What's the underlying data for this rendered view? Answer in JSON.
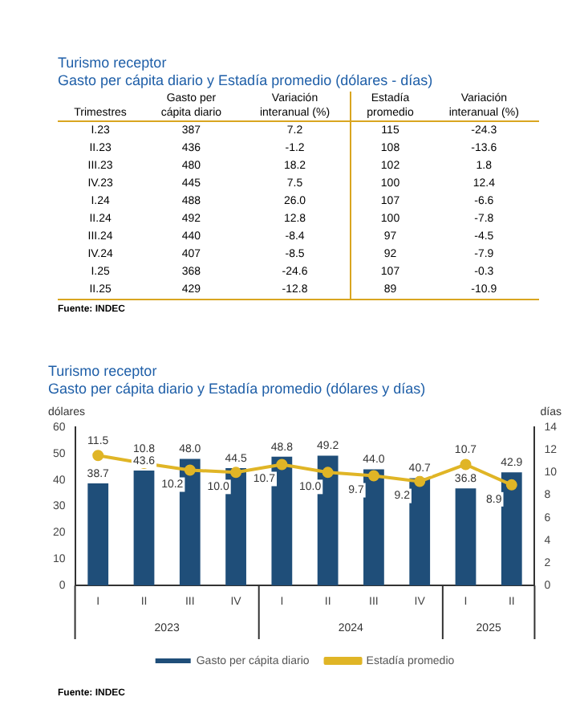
{
  "chart_data": [
    {
      "type": "other",
      "title": "Turismo receptor",
      "subtitle": "Gasto per cápita diario y Estadía promedio (dólares - días)",
      "categories": [
        "Trimestres",
        "Gasto per\ncápita diario",
        "Variación\ninteranual (%)",
        "Estadía\npromedio",
        "Variación\ninteranual (%)"
      ],
      "y_categories": [
        "I.23",
        "II.23",
        "III.23",
        "IV.23",
        "I.24",
        "II.24",
        "III.24",
        "IV.24",
        "I.25",
        "II.25"
      ],
      "cell_labels": [
        [
          "387",
          "7.2",
          "115",
          "-24.3"
        ],
        [
          "436",
          "-1.2",
          "108",
          "-13.6"
        ],
        [
          "480",
          "18.2",
          "102",
          "1.8"
        ],
        [
          "445",
          "7.5",
          "100",
          "12.4"
        ],
        [
          "488",
          "26.0",
          "107",
          "-6.6"
        ],
        [
          "492",
          "12.8",
          "100",
          "-7.8"
        ],
        [
          "440",
          "-8.4",
          "97",
          "-4.5"
        ],
        [
          "407",
          "-8.5",
          "92",
          "-7.9"
        ],
        [
          "368",
          "-24.6",
          "107",
          "-0.3"
        ],
        [
          "429",
          "-12.8",
          "89",
          "-10.9"
        ]
      ],
      "annotations": [
        "Fuente: INDEC"
      ]
    },
    {
      "type": "bar",
      "title": "Turismo receptor",
      "subtitle": "Gasto per cápita diario y Estadía promedio (dólares y días)",
      "ylabel": "dólares",
      "y2label": "días",
      "categories": [
        "I",
        "II",
        "III",
        "IV",
        "I",
        "II",
        "III",
        "IV",
        "I",
        "II"
      ],
      "series": [
        {
          "name": "Gasto per cápita diario",
          "type": "bar",
          "color": "#1f4e79",
          "values": [
            38.7,
            43.6,
            48.0,
            44.5,
            48.8,
            49.2,
            44.0,
            40.7,
            36.8,
            42.9
          ],
          "value_labels": [
            "38.7",
            "43.6",
            "48.0",
            "44.5",
            "48.8",
            "49.2",
            "44.0",
            "40.7",
            "36.8",
            "42.9"
          ]
        },
        {
          "name": "Estadía promedio",
          "type": "line",
          "axis": "y2",
          "color": "#e0b526",
          "marker": "circle",
          "values": [
            11.5,
            10.8,
            10.2,
            10.0,
            10.7,
            10.0,
            9.7,
            9.2,
            10.7,
            8.9
          ],
          "value_labels": [
            "11.5",
            "10.8",
            "10.2",
            "10.0",
            "10.7",
            "10.0",
            "9.7",
            "9.2",
            "10.7",
            "8.9"
          ]
        }
      ],
      "ylim": [
        0,
        60
      ],
      "yticks": [
        0,
        10,
        20,
        30,
        40,
        50,
        60
      ],
      "y2lim": [
        0,
        14
      ],
      "y2ticks": [
        0,
        2,
        4,
        6,
        8,
        10,
        12,
        14
      ],
      "legend": "bottom",
      "grid": false,
      "annotations": [
        "2023",
        "2024",
        "2025",
        "Fuente: INDEC"
      ]
    }
  ]
}
